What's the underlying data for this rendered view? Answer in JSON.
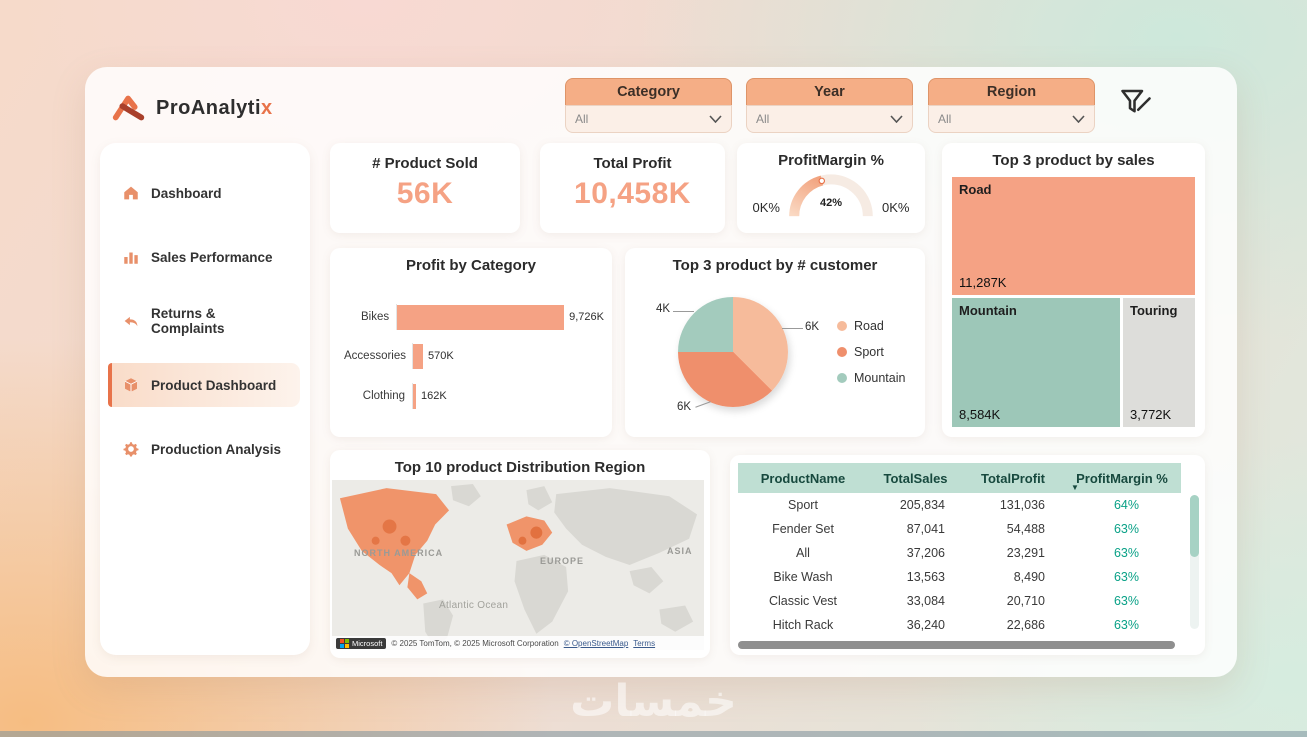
{
  "brand": {
    "name": "ProAnalyti",
    "accent": "x"
  },
  "topbar": {
    "slicers": [
      {
        "label": "Category",
        "value": "All"
      },
      {
        "label": "Year",
        "value": "All"
      },
      {
        "label": "Region",
        "value": "All"
      }
    ]
  },
  "sidebar": {
    "items": [
      {
        "label": "Dashboard"
      },
      {
        "label": "Sales Performance"
      },
      {
        "label": "Returns & Complaints"
      },
      {
        "label": "Product Dashboard"
      },
      {
        "label": "Production Analysis"
      }
    ],
    "active_index": 3
  },
  "kpis": {
    "product_sold": {
      "title": "# Product Sold",
      "value": "56K"
    },
    "total_profit": {
      "title": "Total Profit",
      "value": "10,458K"
    },
    "profit_margin": {
      "title": "ProfitMargin %",
      "left_label": "0K%",
      "value": "42%",
      "right_label": "0K%"
    }
  },
  "chart_data": [
    {
      "type": "treemap",
      "title": "Top 3 product by sales",
      "items": [
        {
          "name": "Road",
          "value": 11287,
          "value_label": "11,287K",
          "color": "#F5A284"
        },
        {
          "name": "Mountain",
          "value": 8584,
          "value_label": "8,584K",
          "color": "#9DC7B8"
        },
        {
          "name": "Touring",
          "value": 3772,
          "value_label": "3,772K",
          "color": "#DDDDDA"
        }
      ]
    },
    {
      "type": "bar",
      "title": "Profit by Category",
      "orientation": "horizontal",
      "categories": [
        "Bikes",
        "Accessories",
        "Clothing"
      ],
      "values": [
        9726,
        570,
        162
      ],
      "value_labels": [
        "9,726K",
        "570K",
        "162K"
      ],
      "xlim": [
        0,
        10000
      ],
      "bar_color": "#F5A284"
    },
    {
      "type": "pie",
      "title": "Top 3 product by # customer",
      "slices": [
        {
          "name": "Road",
          "value": 6,
          "label": "6K",
          "color": "#F6BB9B"
        },
        {
          "name": "Sport",
          "value": 6,
          "label": "6K",
          "color": "#EF8F6C"
        },
        {
          "name": "Mountain",
          "value": 4,
          "label": "4K",
          "color": "#A3CBBD"
        }
      ],
      "legend_position": "right"
    },
    {
      "type": "map",
      "title": "Top 10 product Distribution Region",
      "region_labels": [
        "NORTH AMERICA",
        "EUROPE",
        "ASIA",
        "Atlantic Ocean"
      ],
      "attribution": {
        "microsoft": "Microsoft",
        "text": "© 2025 TomTom, © 2025 Microsoft Corporation",
        "osm_link": "© OpenStreetMap",
        "terms_link": "Terms"
      }
    },
    {
      "type": "table",
      "columns": [
        "ProductName",
        "TotalSales",
        "TotalProfit",
        "ProfitMargin %"
      ],
      "rows": [
        [
          "Sport",
          "205,834",
          "131,036",
          "64%"
        ],
        [
          "Fender Set",
          "87,041",
          "54,488",
          "63%"
        ],
        [
          "All",
          "37,206",
          "23,291",
          "63%"
        ],
        [
          "Bike Wash",
          "13,563",
          "8,490",
          "63%"
        ],
        [
          "Classic Vest",
          "33,084",
          "20,710",
          "63%"
        ],
        [
          "Hitch Rack",
          "36,240",
          "22,686",
          "63%"
        ]
      ]
    }
  ],
  "watermark": "خمسات",
  "colors": {
    "accent_peach": "#F5A284",
    "accent_orange": "#E8734A",
    "teal": "#9DC7B8",
    "table_header_bg": "#BFDFD3",
    "margin_green": "#0AA187"
  }
}
